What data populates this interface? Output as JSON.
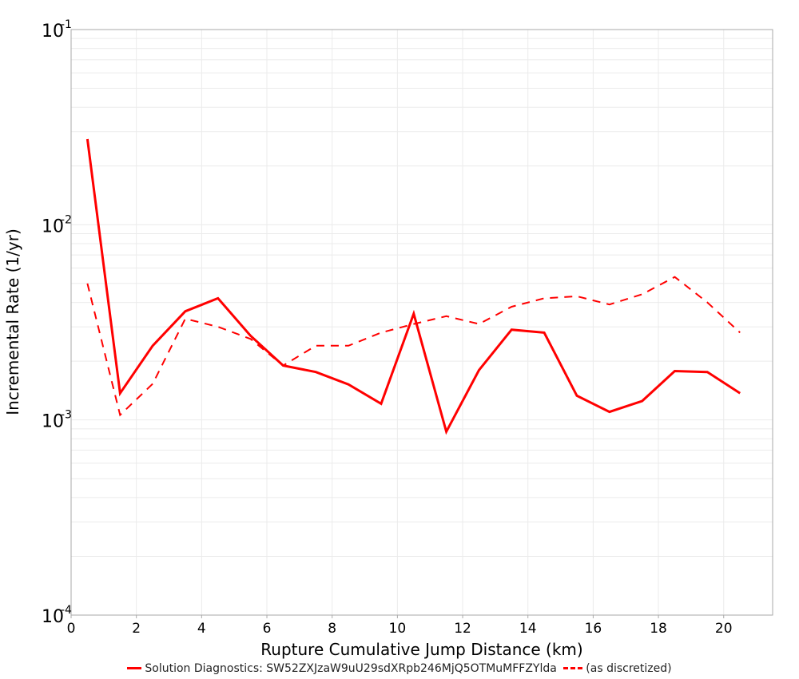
{
  "chart_data": {
    "type": "line",
    "title": "",
    "xlabel": "Rupture Cumulative Jump Distance (km)",
    "ylabel": "Incremental Rate (1/yr)",
    "xscale": "linear",
    "yscale": "log",
    "xlim": [
      0,
      21.5
    ],
    "ylim": [
      0.0001,
      0.1
    ],
    "x_ticks": [
      0,
      2,
      4,
      6,
      8,
      10,
      12,
      14,
      16,
      18,
      20
    ],
    "y_ticks": [
      {
        "base": "10",
        "exp": "-1",
        "value": 0.1
      },
      {
        "base": "10",
        "exp": "-2",
        "value": 0.01
      },
      {
        "base": "10",
        "exp": "-3",
        "value": 0.001
      },
      {
        "base": "10",
        "exp": "-4",
        "value": 0.0001
      }
    ],
    "grid": true,
    "legend_position": "bottom",
    "x": [
      0.5,
      1.5,
      2.5,
      3.5,
      4.5,
      5.5,
      6.5,
      7.5,
      8.5,
      9.5,
      10.5,
      11.5,
      12.5,
      13.5,
      14.5,
      15.5,
      16.5,
      17.5,
      18.5,
      19.5,
      20.5
    ],
    "series": [
      {
        "name": "Solution Diagnostics: SW52ZXJzaW9uU29sdXRpb246MjQ5OTMuMFFZYlda",
        "style": "solid",
        "color": "#ff0000",
        "values": [
          0.0275,
          0.00137,
          0.0024,
          0.0036,
          0.0042,
          0.0027,
          0.0019,
          0.00176,
          0.00152,
          0.00121,
          0.0035,
          0.00087,
          0.0018,
          0.0029,
          0.0028,
          0.00133,
          0.0011,
          0.00125,
          0.00178,
          0.00176,
          0.00137
        ]
      },
      {
        "name": "(as discretized)",
        "style": "dashed",
        "color": "#ff0000",
        "values": [
          0.005,
          0.00106,
          0.00153,
          0.0033,
          0.003,
          0.0026,
          0.0019,
          0.0024,
          0.0024,
          0.0028,
          0.0031,
          0.0034,
          0.0031,
          0.0038,
          0.0042,
          0.0043,
          0.0039,
          0.0044,
          0.0054,
          0.004,
          0.0028
        ]
      }
    ]
  },
  "legend": {
    "items": [
      {
        "label": "Solution Diagnostics: SW52ZXJzaW9uU29sdXRpb246MjQ5OTMuMFFZYlda",
        "style": "solid"
      },
      {
        "label": "(as discretized)",
        "style": "dashed"
      }
    ]
  },
  "colors": {
    "series": "#ff0000",
    "grid": "#ebebeb",
    "frame": "#aaaaaa"
  }
}
